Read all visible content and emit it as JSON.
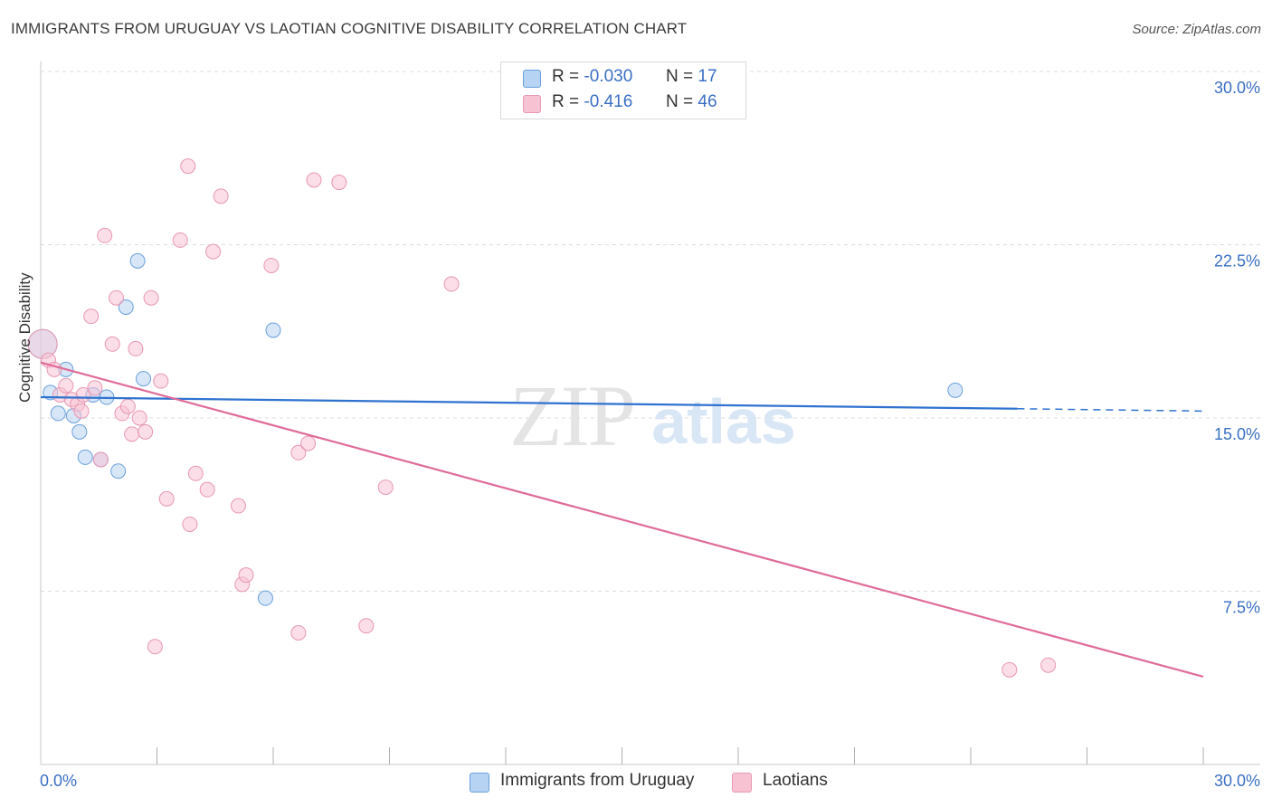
{
  "header": {
    "title": "IMMIGRANTS FROM URUGUAY VS LAOTIAN COGNITIVE DISABILITY CORRELATION CHART",
    "source": "Source: ZipAtlas.com"
  },
  "legend": {
    "rows": [
      {
        "r_label": "R =",
        "r_value": "-0.030",
        "n_label": "N =",
        "n_value": "17"
      },
      {
        "r_label": "R =",
        "r_value": "-0.416",
        "n_label": "N =",
        "n_value": "46"
      }
    ]
  },
  "watermark": {
    "zip": "ZIP",
    "atlas": "atlas"
  },
  "colors": {
    "blue_fill": "#b7d3f3",
    "blue_stroke": "#6a9fdc",
    "blue_line": "#2f72d0",
    "pink_fill": "#f7c3d3",
    "pink_stroke": "#e897b3",
    "pink_line": "#e06b98",
    "axis_text": "#3a6fc4",
    "grid": "#dcdcdc"
  },
  "chart_data": {
    "type": "scatter",
    "title": "IMMIGRANTS FROM URUGUAY VS LAOTIAN COGNITIVE DISABILITY CORRELATION CHART",
    "xlabel": "",
    "ylabel": "Cognitive Disability",
    "xlim": [
      0,
      30
    ],
    "ylim": [
      0,
      30
    ],
    "x_tick_labels": [
      "0.0%",
      "30.0%"
    ],
    "y_ticks": [
      7.5,
      15.0,
      22.5,
      30.0
    ],
    "y_tick_labels": [
      "7.5%",
      "15.0%",
      "22.5%",
      "30.0%"
    ],
    "legend_position": "top-center",
    "series": [
      {
        "name": "Immigrants from Uruguay",
        "color": "blue",
        "r": -0.03,
        "n": 17,
        "points": [
          [
            0.05,
            18.2
          ],
          [
            0.25,
            16.1
          ],
          [
            0.45,
            15.2
          ],
          [
            0.65,
            17.1
          ],
          [
            0.85,
            15.1
          ],
          [
            1.0,
            14.4
          ],
          [
            1.15,
            13.3
          ],
          [
            1.35,
            16.0
          ],
          [
            1.55,
            13.2
          ],
          [
            1.7,
            15.9
          ],
          [
            2.0,
            12.7
          ],
          [
            2.2,
            19.8
          ],
          [
            2.5,
            21.8
          ],
          [
            2.65,
            16.7
          ],
          [
            5.8,
            7.2
          ],
          [
            6.0,
            18.8
          ],
          [
            23.6,
            16.2
          ]
        ],
        "trend": {
          "x": [
            0,
            25.2
          ],
          "y": [
            15.9,
            15.4
          ],
          "dashed_to": {
            "x": 30,
            "y": 15.3
          }
        }
      },
      {
        "name": "Laotians",
        "color": "pink",
        "r": -0.416,
        "n": 46,
        "points": [
          [
            0.05,
            18.2
          ],
          [
            0.2,
            17.5
          ],
          [
            0.35,
            17.1
          ],
          [
            0.5,
            16.0
          ],
          [
            0.65,
            16.4
          ],
          [
            0.8,
            15.8
          ],
          [
            0.95,
            15.6
          ],
          [
            1.05,
            15.3
          ],
          [
            1.1,
            16.0
          ],
          [
            1.3,
            19.4
          ],
          [
            1.4,
            16.3
          ],
          [
            1.55,
            13.2
          ],
          [
            1.65,
            22.9
          ],
          [
            1.85,
            18.2
          ],
          [
            1.95,
            20.2
          ],
          [
            2.1,
            15.2
          ],
          [
            2.25,
            15.5
          ],
          [
            2.35,
            14.3
          ],
          [
            2.45,
            18.0
          ],
          [
            2.55,
            15.0
          ],
          [
            2.7,
            14.4
          ],
          [
            2.85,
            20.2
          ],
          [
            2.95,
            5.1
          ],
          [
            3.1,
            16.6
          ],
          [
            3.25,
            11.5
          ],
          [
            3.6,
            22.7
          ],
          [
            3.8,
            25.9
          ],
          [
            3.85,
            10.4
          ],
          [
            4.0,
            12.6
          ],
          [
            4.3,
            11.9
          ],
          [
            4.45,
            22.2
          ],
          [
            4.65,
            24.6
          ],
          [
            5.1,
            11.2
          ],
          [
            5.2,
            7.8
          ],
          [
            5.3,
            8.2
          ],
          [
            5.95,
            21.6
          ],
          [
            6.65,
            13.5
          ],
          [
            6.65,
            5.7
          ],
          [
            6.9,
            13.9
          ],
          [
            7.05,
            25.3
          ],
          [
            7.7,
            25.2
          ],
          [
            8.4,
            6.0
          ],
          [
            8.9,
            12.0
          ],
          [
            10.6,
            20.8
          ],
          [
            25.0,
            4.1
          ],
          [
            26.0,
            4.3
          ]
        ],
        "trend": {
          "x": [
            0,
            30
          ],
          "y": [
            17.4,
            3.8
          ]
        }
      }
    ]
  }
}
